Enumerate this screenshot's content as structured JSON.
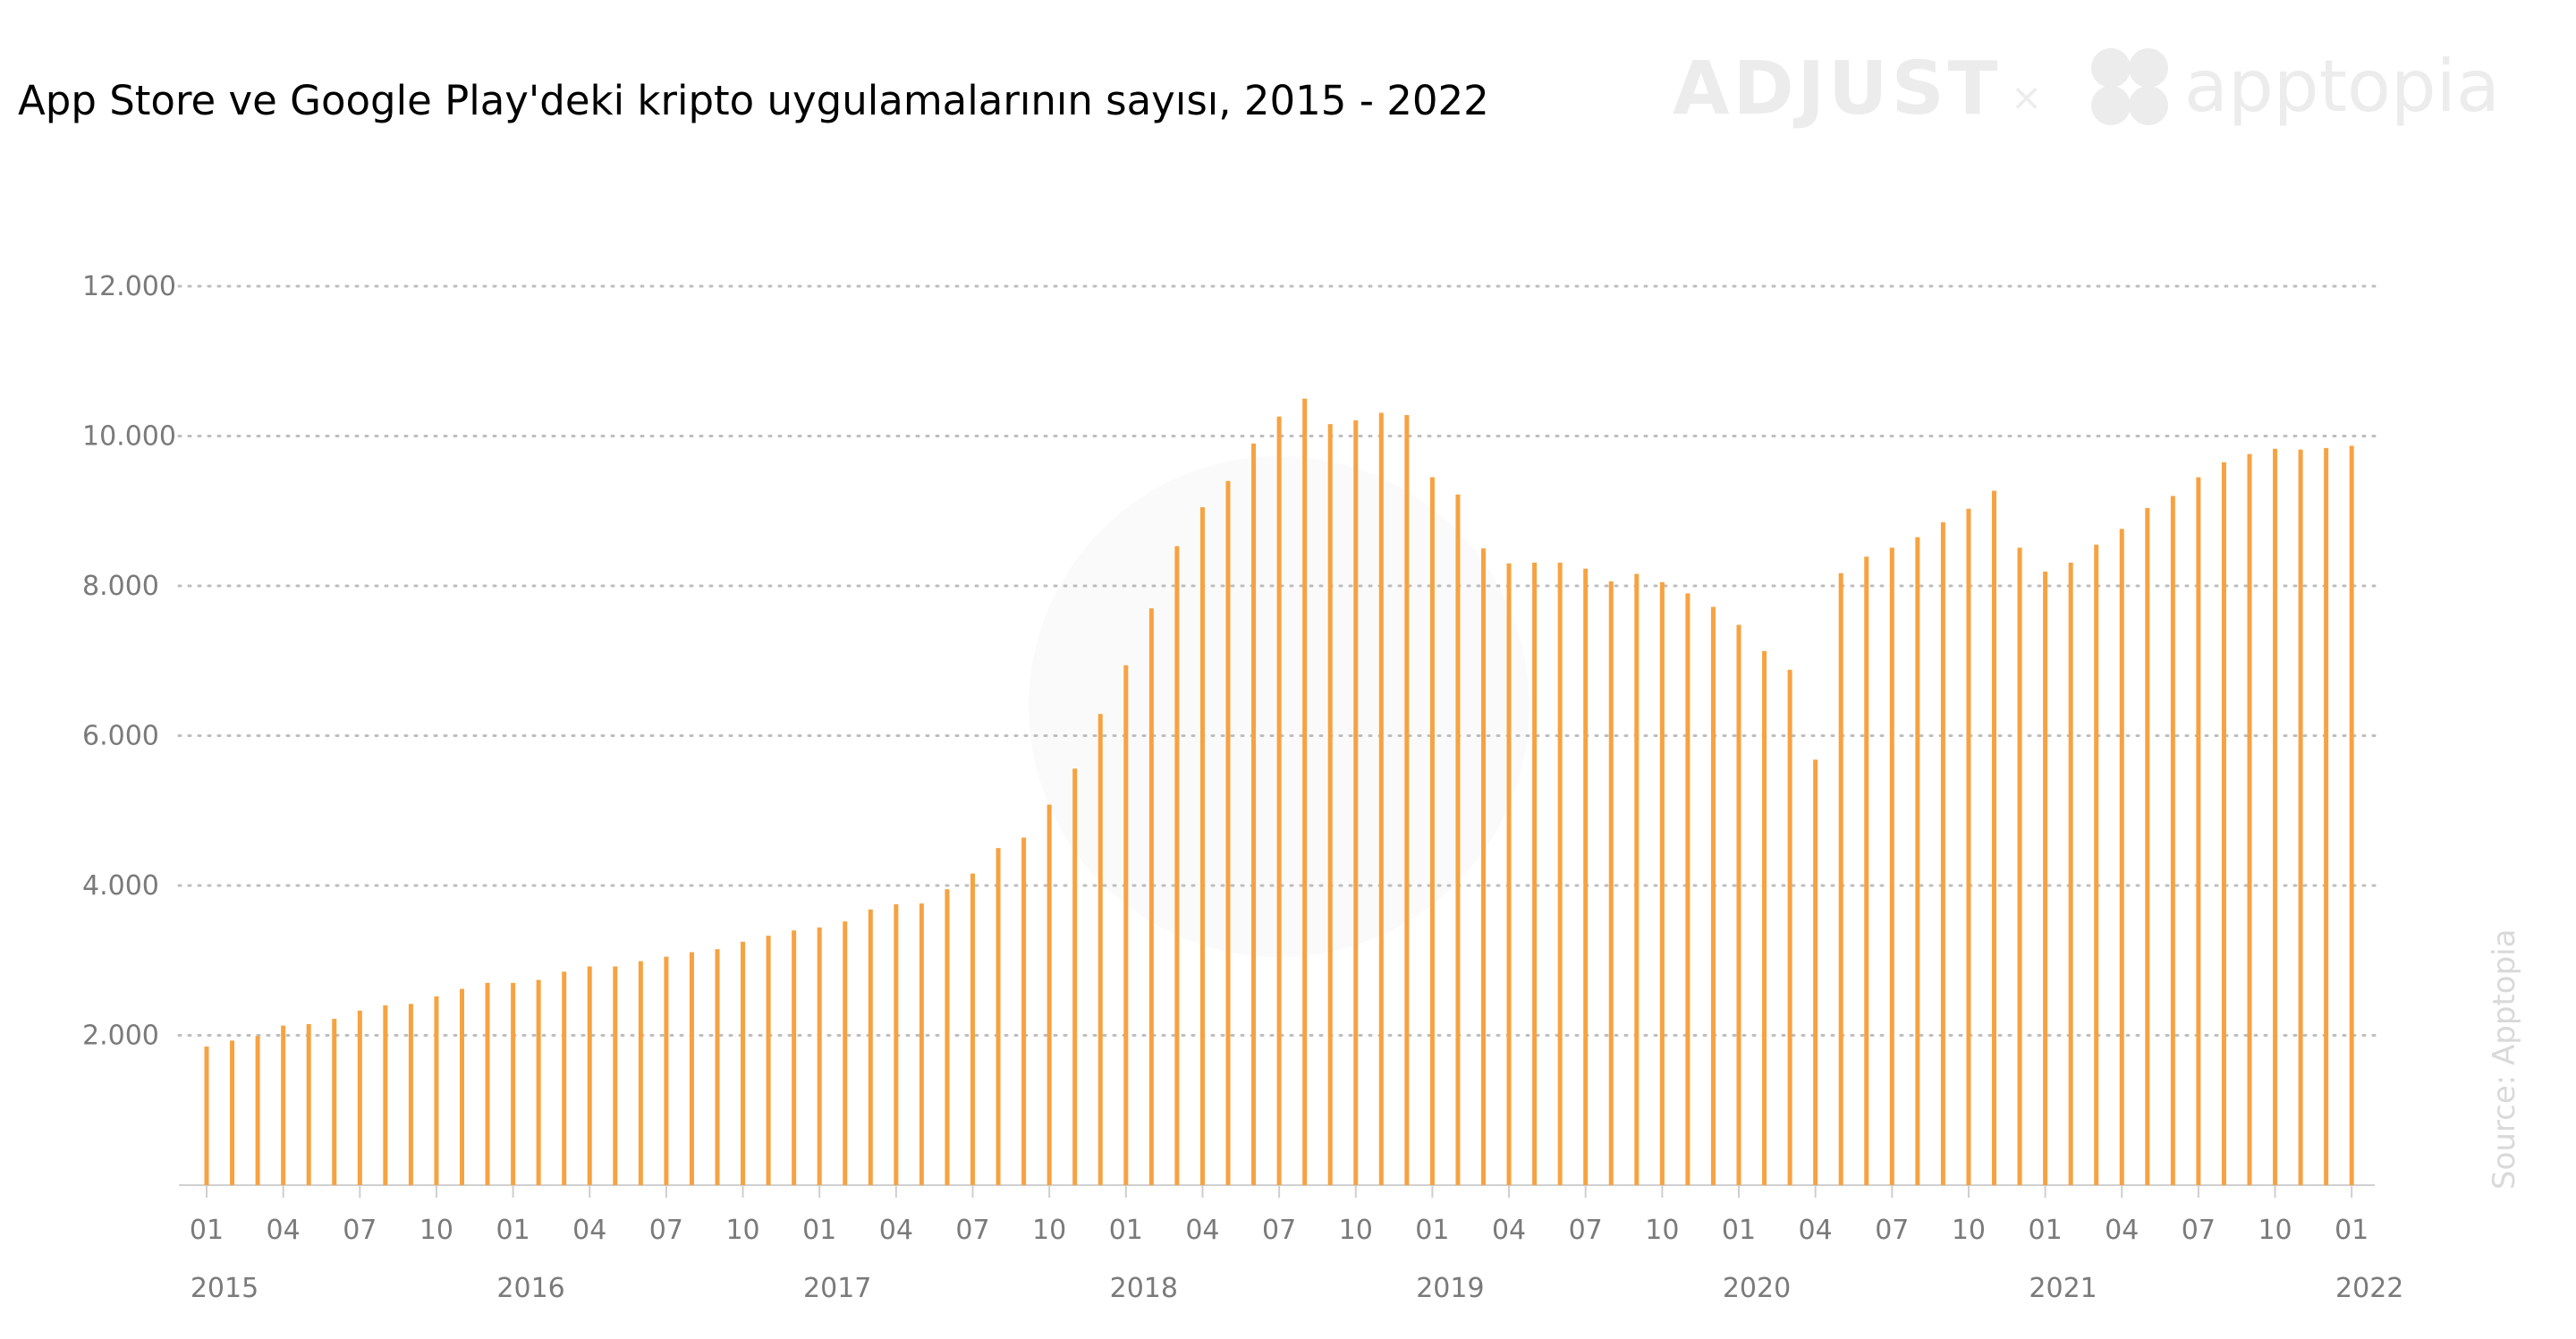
{
  "title": "App Store ve Google Play'deki kripto uygulamalarının sayısı, 2015 - 2022",
  "logos": {
    "adjust": "ADJUST",
    "separator": "×",
    "apptopia": "apptopia"
  },
  "source": "Source: Apptopia",
  "colors": {
    "bar": "#f7a241",
    "grid": "#bdbdbd",
    "axis_text": "#7a7a7a",
    "watermark": "#ececec"
  },
  "chart_data": {
    "type": "bar",
    "title": "App Store ve Google Play'deki kripto uygulamalarının sayısı, 2015 - 2022",
    "xlabel": "",
    "ylabel": "",
    "ylim": [
      0,
      12000
    ],
    "y_ticks": [
      "2.000",
      "4.000",
      "6.000",
      "8.000",
      "10.000",
      "12.000"
    ],
    "y_tick_values": [
      2000,
      4000,
      6000,
      8000,
      10000,
      12000
    ],
    "grid": "horizontal dotted",
    "month_ticks": [
      "01",
      "04",
      "07",
      "10",
      "01",
      "04",
      "07",
      "10",
      "01",
      "04",
      "07",
      "10",
      "01",
      "04",
      "07",
      "10",
      "01",
      "04",
      "07",
      "10",
      "01",
      "04",
      "07",
      "10",
      "01",
      "04",
      "07",
      "10",
      "01"
    ],
    "year_labels": [
      "2015",
      "2016",
      "2017",
      "2018",
      "2019",
      "2020",
      "2021",
      "2022"
    ],
    "categories": [
      "2015-01",
      "2015-02",
      "2015-03",
      "2015-04",
      "2015-05",
      "2015-06",
      "2015-07",
      "2015-08",
      "2015-09",
      "2015-10",
      "2015-11",
      "2015-12",
      "2016-01",
      "2016-02",
      "2016-03",
      "2016-04",
      "2016-05",
      "2016-06",
      "2016-07",
      "2016-08",
      "2016-09",
      "2016-10",
      "2016-11",
      "2016-12",
      "2017-01",
      "2017-02",
      "2017-03",
      "2017-04",
      "2017-05",
      "2017-06",
      "2017-07",
      "2017-08",
      "2017-09",
      "2017-10",
      "2017-11",
      "2017-12",
      "2018-01",
      "2018-02",
      "2018-03",
      "2018-04",
      "2018-05",
      "2018-06",
      "2018-07",
      "2018-08",
      "2018-09",
      "2018-10",
      "2018-11",
      "2018-12",
      "2019-01",
      "2019-02",
      "2019-03",
      "2019-04",
      "2019-05",
      "2019-06",
      "2019-07",
      "2019-08",
      "2019-09",
      "2019-10",
      "2019-11",
      "2019-12",
      "2020-01",
      "2020-02",
      "2020-03",
      "2020-04",
      "2020-05",
      "2020-06",
      "2020-07",
      "2020-08",
      "2020-09",
      "2020-10",
      "2020-11",
      "2020-12",
      "2021-01",
      "2021-02",
      "2021-03",
      "2021-04",
      "2021-05",
      "2021-06",
      "2021-07",
      "2021-08",
      "2021-09",
      "2021-10",
      "2021-11",
      "2021-12",
      "2022-01"
    ],
    "values": [
      1850,
      1930,
      1990,
      2130,
      2150,
      2220,
      2330,
      2400,
      2420,
      2520,
      2620,
      2700,
      2700,
      2740,
      2850,
      2920,
      2920,
      2990,
      3050,
      3110,
      3150,
      3250,
      3330,
      3400,
      3440,
      3520,
      3680,
      3750,
      3760,
      3950,
      4160,
      4500,
      4640,
      5080,
      5560,
      6290,
      6940,
      7700,
      8530,
      9050,
      9400,
      9900,
      10260,
      10500,
      10160,
      10210,
      10310,
      10280,
      9450,
      9220,
      8500,
      8300,
      8310,
      8310,
      8230,
      8060,
      8160,
      8050,
      7900,
      7720,
      7480,
      7130,
      6880,
      5680,
      8170,
      8390,
      8510,
      8650,
      8850,
      9030,
      9270,
      8510,
      8190,
      8310,
      8550,
      8760,
      9040,
      9200,
      9450,
      9650,
      9760,
      9830,
      9820,
      9840,
      9870
    ]
  }
}
